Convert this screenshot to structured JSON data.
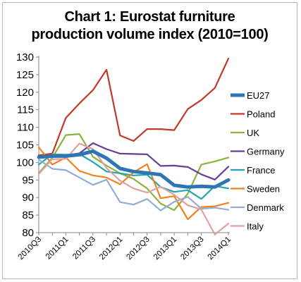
{
  "chart_data": {
    "type": "line",
    "title": "Chart 1: Eurostat furniture production volume index (2010=100)",
    "title_lines": [
      "Chart 1: Eurostat furniture",
      "production volume index (2010=100)"
    ],
    "xlabel": "",
    "ylabel": "",
    "ylim": [
      80,
      130
    ],
    "yticks": [
      80,
      85,
      90,
      95,
      100,
      105,
      110,
      115,
      120,
      125,
      130
    ],
    "grid": false,
    "legend_position": "right",
    "x": [
      "2010Q3",
      "2010Q4",
      "2011Q1",
      "2011Q2",
      "2011Q3",
      "2011Q4",
      "2012Q1",
      "2012Q2",
      "2012Q3",
      "2012Q4",
      "2013Q1",
      "2013Q2",
      "2013Q3",
      "2013Q4",
      "2014Q1"
    ],
    "x_tick_labels": [
      "2010Q3",
      "2011Q1",
      "2011Q3",
      "2012Q1",
      "2012Q3",
      "2013Q1",
      "2013Q3",
      "2014Q1"
    ],
    "series": [
      {
        "name": "EU27",
        "color": "#2e75b6",
        "width": 5,
        "values": [
          101.5,
          101.8,
          101.8,
          102.2,
          103.2,
          101.2,
          98.3,
          97.4,
          97.0,
          96.5,
          93.5,
          93.0,
          93.2,
          93.0,
          95.0
        ]
      },
      {
        "name": "Poland",
        "color": "#c0392b",
        "width": 2.2,
        "values": [
          102.0,
          102.5,
          112.7,
          116.8,
          120.6,
          126.4,
          107.7,
          106.1,
          109.5,
          109.5,
          109.2,
          115.2,
          117.8,
          121.2,
          129.6
        ]
      },
      {
        "name": "UK",
        "color": "#8cb43c",
        "width": 2.2,
        "values": [
          97.0,
          101.3,
          107.8,
          108.1,
          101.6,
          99.1,
          96.9,
          95.3,
          92.6,
          88.3,
          86.4,
          91.1,
          99.4,
          100.3,
          101.4
        ]
      },
      {
        "name": "Germany",
        "color": "#6a3d9a",
        "width": 2.2,
        "values": [
          101.4,
          101.7,
          102.0,
          102.6,
          105.5,
          103.8,
          102.5,
          102.4,
          102.3,
          99.0,
          99.1,
          98.7,
          96.6,
          95.1,
          98.8
        ]
      },
      {
        "name": "France",
        "color": "#20a6b0",
        "width": 2.2,
        "values": [
          99.4,
          102.3,
          102.2,
          102.4,
          100.1,
          97.4,
          96.9,
          96.3,
          96.5,
          93.0,
          91.6,
          92.1,
          89.6,
          93.3,
          92.6
        ]
      },
      {
        "name": "Sweden",
        "color": "#f0821e",
        "width": 2.2,
        "values": [
          104.3,
          99.4,
          101.4,
          97.6,
          96.3,
          95.7,
          93.8,
          97.2,
          99.5,
          89.8,
          90.4,
          83.8,
          87.3,
          87.5,
          88.5
        ]
      },
      {
        "name": "Denmark",
        "color": "#93acd6",
        "width": 2.2,
        "values": [
          100.8,
          98.2,
          97.8,
          95.7,
          93.6,
          95.1,
          88.7,
          88.0,
          89.6,
          86.3,
          88.8,
          90.2,
          86.8,
          87.1,
          86.5
        ]
      },
      {
        "name": "Italy",
        "color": "#e0a0a0",
        "width": 2.2,
        "values": [
          96.7,
          100.9,
          101.0,
          105.4,
          103.8,
          98.4,
          94.8,
          92.6,
          91.4,
          93.1,
          90.8,
          87.8,
          86.6,
          79.5,
          82.6
        ]
      }
    ]
  }
}
